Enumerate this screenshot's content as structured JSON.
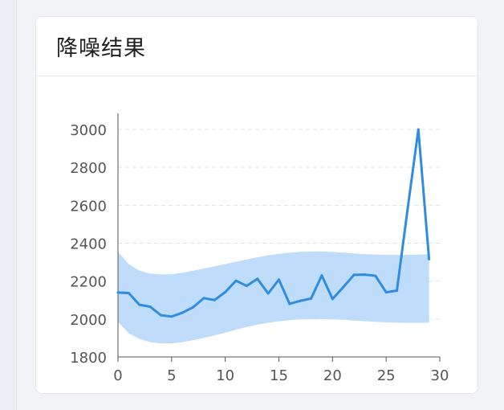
{
  "card": {
    "title": "降噪结果"
  },
  "chart_data": {
    "type": "line",
    "title": "",
    "xlabel": "",
    "ylabel": "",
    "xlim": [
      0,
      30
    ],
    "ylim": [
      1800,
      3000
    ],
    "xticks": [
      0,
      5,
      10,
      15,
      20,
      25,
      30
    ],
    "yticks": [
      1800,
      2000,
      2200,
      2400,
      2600,
      2800,
      3000
    ],
    "grid": "horizontal dashed",
    "series": [
      {
        "x": [
          0,
          1,
          2,
          3,
          4,
          5,
          6,
          7,
          8,
          9,
          10,
          11,
          12,
          13,
          14,
          15,
          16,
          17,
          18,
          19,
          20,
          21,
          22,
          23,
          24,
          25,
          26,
          27,
          28,
          29
        ],
        "values": [
          2140,
          2137,
          2075,
          2065,
          2020,
          2013,
          2033,
          2062,
          2110,
          2100,
          2142,
          2202,
          2175,
          2212,
          2135,
          2208,
          2080,
          2096,
          2108,
          2230,
          2106,
          2168,
          2233,
          2234,
          2228,
          2141,
          2150,
          2580,
          3000,
          2315
        ],
        "color": "#2e8de2"
      }
    ],
    "band": {
      "x": [
        0,
        1,
        2,
        3,
        4,
        5,
        6,
        7,
        8,
        9,
        10,
        11,
        12,
        13,
        14,
        15,
        16,
        17,
        18,
        19,
        20,
        21,
        22,
        23,
        24,
        25,
        26,
        27,
        28,
        29
      ],
      "upper": [
        2355,
        2290,
        2255,
        2240,
        2235,
        2236,
        2244,
        2254,
        2266,
        2278,
        2290,
        2302,
        2314,
        2326,
        2336,
        2344,
        2350,
        2354,
        2356,
        2356,
        2354,
        2350,
        2346,
        2342,
        2340,
        2338,
        2338,
        2338,
        2340,
        2342
      ],
      "lower": [
        1985,
        1925,
        1895,
        1878,
        1872,
        1872,
        1878,
        1888,
        1900,
        1914,
        1928,
        1944,
        1958,
        1970,
        1980,
        1988,
        1994,
        1998,
        2000,
        2000,
        1999,
        1996,
        1992,
        1988,
        1985,
        1983,
        1981,
        1980,
        1980,
        1980
      ],
      "color": "#bfdcfb"
    }
  }
}
